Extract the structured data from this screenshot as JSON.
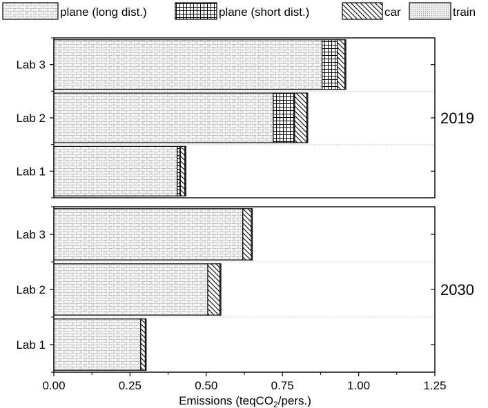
{
  "chart_data": {
    "type": "bar",
    "orientation": "horizontal",
    "stacked": true,
    "xlabel": "Emissions (teqCO₂/pers.)",
    "xlim": [
      0,
      1.25
    ],
    "xticks": [
      "0.00",
      "0.25",
      "0.50",
      "0.75",
      "1.00",
      "1.25"
    ],
    "legend": {
      "placement": "top",
      "entries": [
        {
          "name": "plane (long dist.)",
          "pattern": "brick"
        },
        {
          "name": "plane (short dist.)",
          "pattern": "grid"
        },
        {
          "name": "car",
          "pattern": "diagonal"
        },
        {
          "name": "train",
          "pattern": "dots"
        }
      ]
    },
    "panels": [
      {
        "label": "2019",
        "categories": [
          "Lab 3",
          "Lab 2",
          "Lab 1"
        ],
        "series": [
          {
            "name": "plane (long dist.)",
            "values": [
              0.88,
              0.72,
              0.405
            ]
          },
          {
            "name": "plane (short dist.)",
            "values": [
              0.05,
              0.07,
              0.01
            ]
          },
          {
            "name": "car",
            "values": [
              0.025,
              0.04,
              0.015
            ]
          },
          {
            "name": "train",
            "values": [
              0.003,
              0.003,
              0.003
            ]
          }
        ]
      },
      {
        "label": "2030",
        "categories": [
          "Lab 3",
          "Lab 2",
          "Lab 1"
        ],
        "series": [
          {
            "name": "plane (long dist.)",
            "values": [
              0.62,
              0.505,
              0.285
            ]
          },
          {
            "name": "plane (short dist.)",
            "values": [
              0,
              0,
              0
            ]
          },
          {
            "name": "car",
            "values": [
              0.028,
              0.04,
              0.015
            ]
          },
          {
            "name": "train",
            "values": [
              0.003,
              0.003,
              0.003
            ]
          }
        ]
      }
    ],
    "colors": {
      "bar_fill": "#f4f4f4",
      "stroke": "#000000",
      "pattern": "#7a7a7a",
      "divider": "#cfcfcf"
    }
  }
}
